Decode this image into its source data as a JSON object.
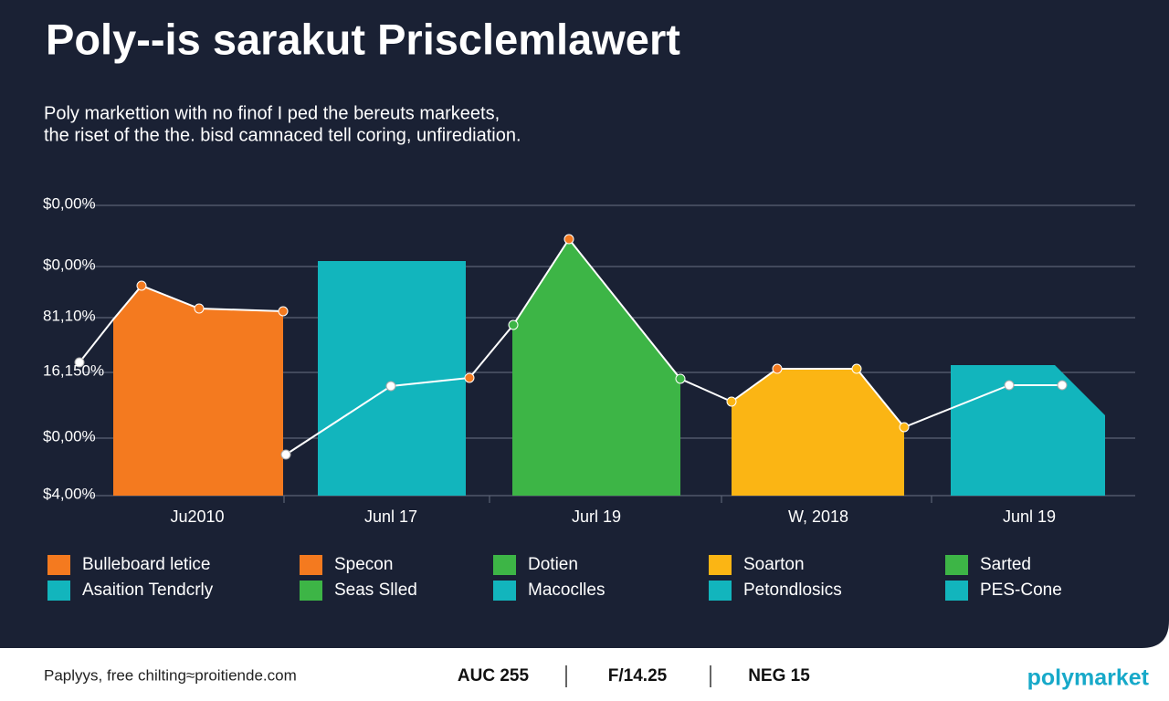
{
  "header": {
    "title": "Poly--is sarakut Prisclemlawert",
    "subtitle_lines": [
      "Poly markettion with no finof I ped the bereuts markeets,",
      "the riset of the the. bisd camnaced tell coring, unfirediation."
    ]
  },
  "y_axis_labels": [
    "$0,00%",
    "$0,00%",
    "81,10%",
    "16,150%",
    "$0,00%",
    "$4,00%"
  ],
  "x_axis_labels": [
    "Ju2010",
    "Junl 17",
    "Jurl 19",
    "W, 2018",
    "Junl 19"
  ],
  "legend": [
    [
      "Bulleboard letice",
      "Asaition Tendcrly"
    ],
    [
      "Specon",
      "Seas Slled"
    ],
    [
      "Dotien",
      "Macoclles"
    ],
    [
      "Soarton",
      "Petondlosics"
    ],
    [
      "Sarted",
      "PES-Cone"
    ]
  ],
  "footer": {
    "source": "Paplyys, free chilting≈proitiende.com",
    "stats": [
      "AUC 255",
      "F/14.25",
      "NEG 15"
    ],
    "brand": "polymarket"
  }
}
